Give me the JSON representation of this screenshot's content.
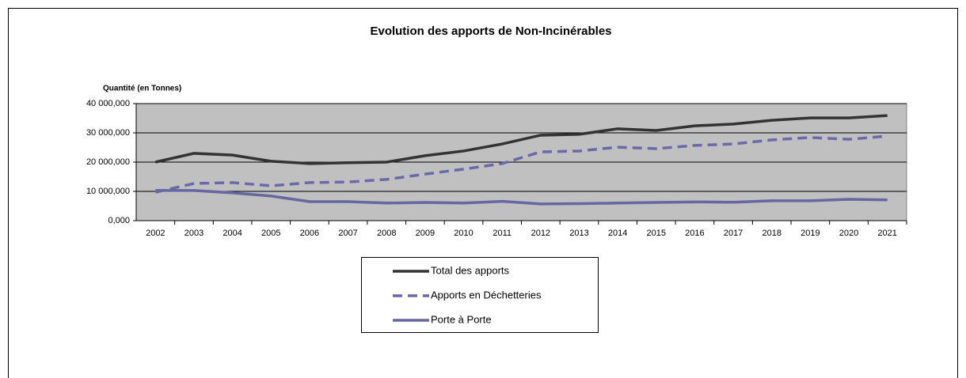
{
  "chart_data": {
    "type": "line",
    "title": "Evolution des apports  de Non-Incinérables",
    "y_axis_label": "Quantité (en Tonnes)",
    "categories": [
      "2002",
      "2003",
      "2004",
      "2005",
      "2006",
      "2007",
      "2008",
      "2009",
      "2010",
      "2011",
      "2012",
      "2013",
      "2014",
      "2015",
      "2016",
      "2017",
      "2018",
      "2019",
      "2020",
      "2021"
    ],
    "series": [
      {
        "name": "Total des apports",
        "color": "#333333",
        "dashed": false,
        "values": [
          20000000,
          23000000,
          22400000,
          20300000,
          19500000,
          19800000,
          20000000,
          22200000,
          23800000,
          26200000,
          29200000,
          29500000,
          31400000,
          30800000,
          32400000,
          33000000,
          34300000,
          35100000,
          35100000,
          35900000
        ]
      },
      {
        "name": "Apports en Déchetteries",
        "color": "#6a6aa8",
        "dashed": true,
        "values": [
          9700000,
          12700000,
          13000000,
          11900000,
          13000000,
          13200000,
          14100000,
          15900000,
          17600000,
          19500000,
          23500000,
          23800000,
          25100000,
          24600000,
          25700000,
          26200000,
          27600000,
          28400000,
          27800000,
          28900000
        ]
      },
      {
        "name": "Porte à Porte",
        "color": "#6666a0",
        "dashed": false,
        "values": [
          10300000,
          10300000,
          9500000,
          8400000,
          6500000,
          6500000,
          6000000,
          6200000,
          6000000,
          6600000,
          5700000,
          5800000,
          6000000,
          6200000,
          6400000,
          6300000,
          6800000,
          6800000,
          7300000,
          7100000
        ]
      }
    ],
    "ylim": [
      0,
      40000000
    ],
    "yticks": [
      {
        "value": 0,
        "label": "0,000"
      },
      {
        "value": 10000000,
        "label": "10 000,000"
      },
      {
        "value": 20000000,
        "label": "20 000,000"
      },
      {
        "value": 30000000,
        "label": "30 000,000"
      },
      {
        "value": 40000000,
        "label": "40 000,000"
      }
    ],
    "grid": true,
    "plot_background": "#c0c0c0"
  }
}
